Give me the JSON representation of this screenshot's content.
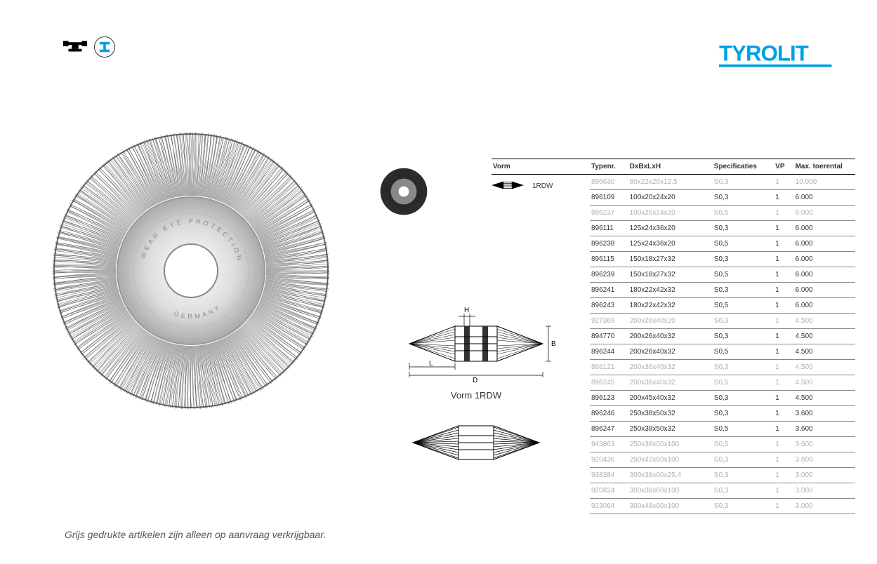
{
  "brand": {
    "name": "TYROLIT",
    "color": "#009FE3",
    "underline_color": "#009FE3"
  },
  "form_column": {
    "header": "Vorm",
    "value": "1RDW"
  },
  "diagram": {
    "caption": "Vorm 1RDW",
    "labels": {
      "H": "H",
      "B": "B",
      "L": "L",
      "D": "D"
    }
  },
  "table": {
    "headers": {
      "typenr": "Typenr.",
      "dxblxh": "DxBxLxH",
      "spec": "Specificaties",
      "vp": "VP",
      "max": "Max. toerental"
    },
    "rows": [
      {
        "typenr": "896630",
        "dxblxh": "80x22x20x12,5",
        "spec": "S0,3",
        "vp": "1",
        "max": "10.000",
        "grey": true
      },
      {
        "typenr": "896109",
        "dxblxh": "100x20x24x20",
        "spec": "S0,3",
        "vp": "1",
        "max": "6.000",
        "grey": false
      },
      {
        "typenr": "896237",
        "dxblxh": "100x20x24x20",
        "spec": "S0,5",
        "vp": "1",
        "max": "6.000",
        "grey": true
      },
      {
        "typenr": "896111",
        "dxblxh": "125x24x36x20",
        "spec": "S0,3",
        "vp": "1",
        "max": "6.000",
        "grey": false
      },
      {
        "typenr": "896238",
        "dxblxh": "125x24x36x20",
        "spec": "S0,5",
        "vp": "1",
        "max": "6.000",
        "grey": false
      },
      {
        "typenr": "896115",
        "dxblxh": "150x18x27x32",
        "spec": "S0,3",
        "vp": "1",
        "max": "6.000",
        "grey": false
      },
      {
        "typenr": "896239",
        "dxblxh": "150x18x27x32",
        "spec": "S0,5",
        "vp": "1",
        "max": "6.000",
        "grey": false
      },
      {
        "typenr": "896241",
        "dxblxh": "180x22x42x32",
        "spec": "S0,3",
        "vp": "1",
        "max": "6.000",
        "grey": false
      },
      {
        "typenr": "896243",
        "dxblxh": "180x22x42x32",
        "spec": "S0,5",
        "vp": "1",
        "max": "6.000",
        "grey": false
      },
      {
        "typenr": "927369",
        "dxblxh": "200x26x40x20",
        "spec": "S0,3",
        "vp": "1",
        "max": "4.500",
        "grey": true
      },
      {
        "typenr": "894770",
        "dxblxh": "200x26x40x32",
        "spec": "S0,3",
        "vp": "1",
        "max": "4.500",
        "grey": false
      },
      {
        "typenr": "896244",
        "dxblxh": "200x26x40x32",
        "spec": "S0,5",
        "vp": "1",
        "max": "4.500",
        "grey": false
      },
      {
        "typenr": "896121",
        "dxblxh": "200x36x40x32",
        "spec": "S0,3",
        "vp": "1",
        "max": "4.500",
        "grey": true
      },
      {
        "typenr": "896245",
        "dxblxh": "200x36x40x32",
        "spec": "S0,5",
        "vp": "1",
        "max": "4.500",
        "grey": true
      },
      {
        "typenr": "896123",
        "dxblxh": "200x45x40x32",
        "spec": "S0,3",
        "vp": "1",
        "max": "4.500",
        "grey": false
      },
      {
        "typenr": "896246",
        "dxblxh": "250x38x50x32",
        "spec": "S0,3",
        "vp": "1",
        "max": "3.600",
        "grey": false
      },
      {
        "typenr": "896247",
        "dxblxh": "250x38x50x32",
        "spec": "S0,5",
        "vp": "1",
        "max": "3.600",
        "grey": false
      },
      {
        "typenr": "943863",
        "dxblxh": "250x38x50x100",
        "spec": "S0,5",
        "vp": "1",
        "max": "3.600",
        "grey": true
      },
      {
        "typenr": "920436",
        "dxblxh": "250x42x50x100",
        "spec": "S0,3",
        "vp": "1",
        "max": "3.600",
        "grey": true
      },
      {
        "typenr": "938384",
        "dxblxh": "300x38x60x25,4",
        "spec": "S0,3",
        "vp": "1",
        "max": "3.000",
        "grey": true
      },
      {
        "typenr": "920824",
        "dxblxh": "300x38x60x100",
        "spec": "S0,3",
        "vp": "1",
        "max": "3.000",
        "grey": true
      },
      {
        "typenr": "923064",
        "dxblxh": "300x48x60x100",
        "spec": "S0,3",
        "vp": "1",
        "max": "3.000",
        "grey": true
      }
    ]
  },
  "footnote": "Grijs gedrukte artikelen zijn alleen op aanvraag verkrijgbaar.",
  "colors": {
    "text": "#333333",
    "grey_text": "#b0b0b0",
    "border": "#888888",
    "header_border": "#000000",
    "background": "#ffffff"
  }
}
